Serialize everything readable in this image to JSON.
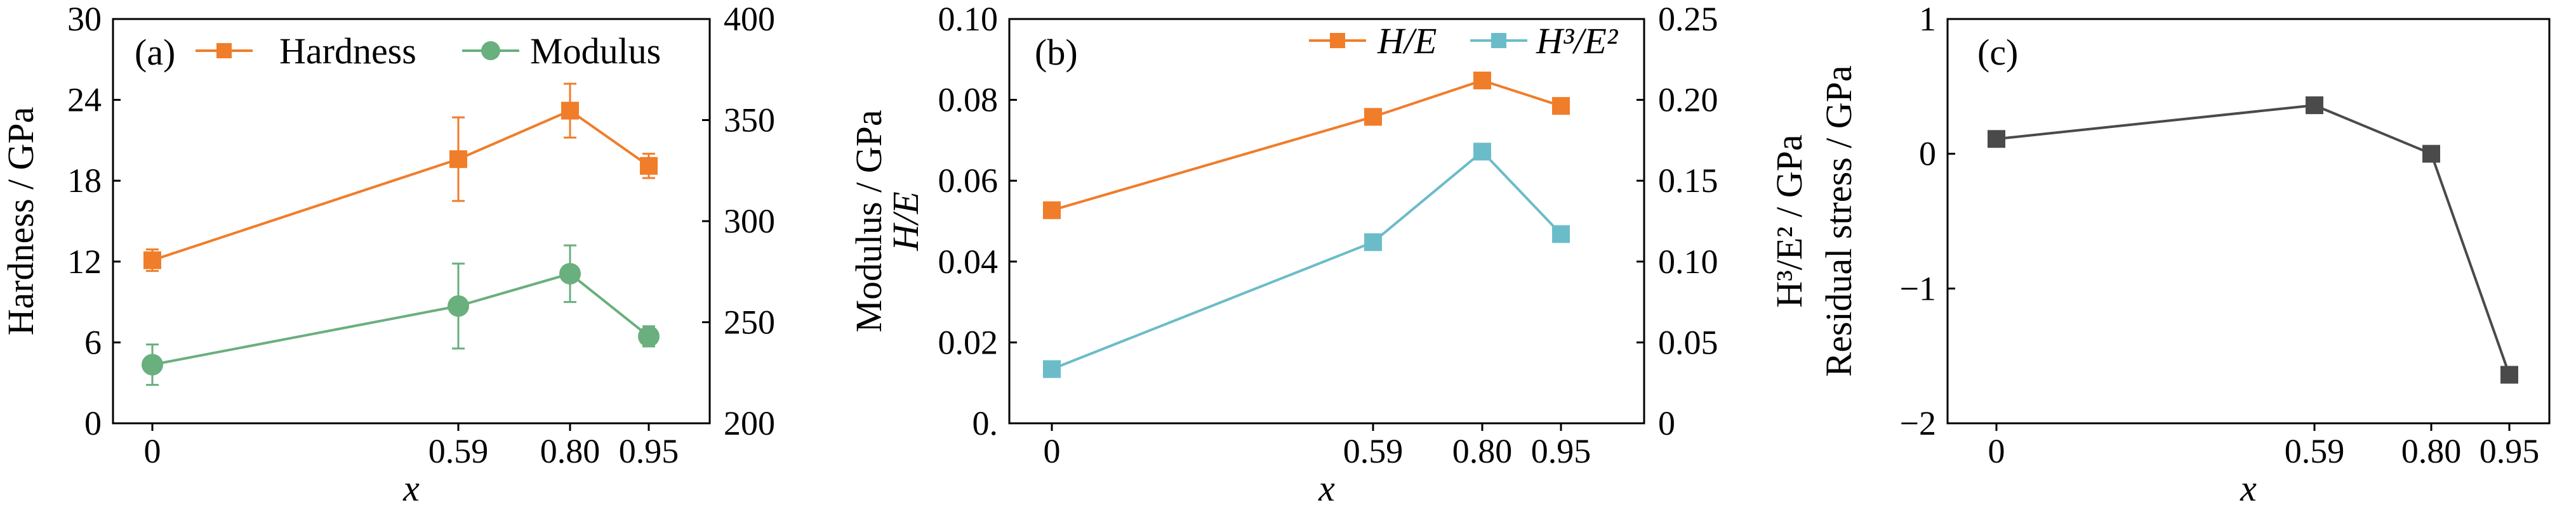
{
  "chart_data": [
    {
      "panel": "(a)",
      "type": "line",
      "x": [
        0,
        0.59,
        0.8,
        0.95
      ],
      "x_tick_labels": [
        "0",
        "0.59",
        "0.80",
        "0.95"
      ],
      "xlabel": "x",
      "ylabel": "Hardness / GPa",
      "ylabel_right": "Modulus / GPa",
      "ylim": [
        0,
        30
      ],
      "yticks": [
        0,
        6,
        12,
        18,
        24,
        30
      ],
      "ylim_right": [
        200,
        400
      ],
      "yticks_right": [
        200,
        250,
        300,
        350,
        400
      ],
      "legend_position": "top",
      "series": [
        {
          "name": "Hardness",
          "axis": "left",
          "marker": "square",
          "color": "#F07D2A",
          "values": [
            12.1,
            19.6,
            23.2,
            19.1
          ],
          "errors": [
            0.8,
            3.1,
            2.0,
            0.9
          ]
        },
        {
          "name": "Modulus",
          "axis": "right",
          "marker": "circle",
          "color": "#6AAF7E",
          "values": [
            229,
            258,
            274,
            243
          ],
          "errors": [
            10,
            21,
            14,
            5
          ]
        }
      ]
    },
    {
      "panel": "(b)",
      "type": "line",
      "x": [
        0,
        0.59,
        0.8,
        0.95
      ],
      "x_tick_labels": [
        "0",
        "0.59",
        "0.80",
        "0.95"
      ],
      "xlabel": "x",
      "ylabel": "H/E",
      "ylabel_right": "H³/E² / GPa",
      "ylim": [
        0,
        0.1
      ],
      "yticks": [
        0,
        0.02,
        0.04,
        0.06,
        0.08,
        0.1
      ],
      "ytick_labels": [
        "0.",
        "0.02",
        "0.04",
        "0.06",
        "0.08",
        "0.10"
      ],
      "ylim_right": [
        0,
        0.25
      ],
      "yticks_right": [
        0,
        0.05,
        0.1,
        0.15,
        0.2,
        0.25
      ],
      "ytick_labels_right": [
        "0",
        "0.05",
        "0.10",
        "0.15",
        "0.20",
        "0.25"
      ],
      "legend_position": "top-right",
      "series": [
        {
          "name": "H/E",
          "axis": "left",
          "marker": "square",
          "color": "#F07D2A",
          "values": [
            0.0527,
            0.0758,
            0.0848,
            0.0785
          ]
        },
        {
          "name": "H³/E²",
          "axis": "right",
          "marker": "square",
          "color": "#6BBCC9",
          "values": [
            0.0335,
            0.112,
            0.168,
            0.117
          ]
        }
      ]
    },
    {
      "panel": "(c)",
      "type": "line",
      "x": [
        0,
        0.59,
        0.8,
        0.95
      ],
      "x_tick_labels": [
        "0",
        "0.59",
        "0.80",
        "0.95"
      ],
      "xlabel": "x",
      "ylabel": "Residual stress / GPa",
      "ylim": [
        -2,
        1
      ],
      "yticks": [
        -2,
        -1,
        0,
        1
      ],
      "ytick_labels": [
        "−2",
        "−1",
        "0",
        "1"
      ],
      "series": [
        {
          "name": "",
          "axis": "left",
          "marker": "square",
          "color": "#4A4A4A",
          "values": [
            0.11,
            0.36,
            0.0,
            -1.64
          ]
        }
      ]
    }
  ]
}
